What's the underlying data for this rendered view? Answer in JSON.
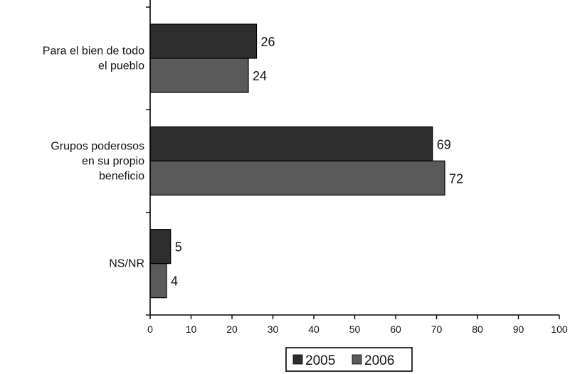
{
  "chart_data": {
    "type": "bar",
    "orientation": "horizontal",
    "categories": [
      [
        "Para el bien de todo",
        "el pueblo"
      ],
      [
        "Grupos poderosos",
        "en su propio",
        "beneficio"
      ],
      [
        "NS/NR"
      ]
    ],
    "series": [
      {
        "name": "2005",
        "values": [
          26,
          69,
          5
        ],
        "color": "#2e2e2e"
      },
      {
        "name": "2006",
        "values": [
          24,
          72,
          4
        ],
        "color": "#5a5a5a"
      }
    ],
    "xlim": [
      0,
      100
    ],
    "xticks": [
      0,
      10,
      20,
      30,
      40,
      50,
      60,
      70,
      80,
      90,
      100
    ],
    "grid": false,
    "legend": "bottom-center",
    "title": "",
    "xlabel": "",
    "ylabel": ""
  }
}
